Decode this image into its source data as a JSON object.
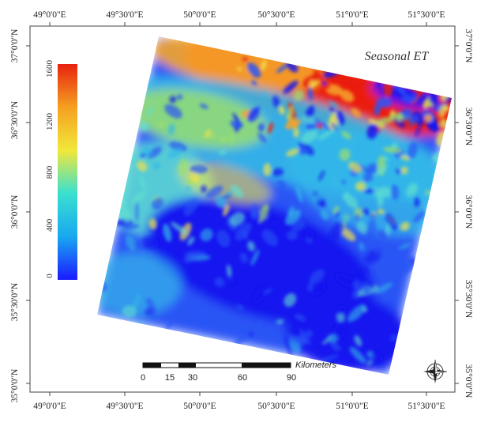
{
  "map": {
    "title": "Seasonal ET",
    "top_lon_labels": [
      "49°0'0\"E",
      "49°30'0\"E",
      "50°0'0\"E",
      "50°30'0\"E",
      "51°0'0\"E",
      "51°30'0\"E"
    ],
    "bottom_lon_labels": [
      "49°0'0\"E",
      "49°30'0\"E",
      "50°0'0\"E",
      "50°30'0\"E",
      "51°0'0\"E",
      "51°30'0\"E"
    ],
    "left_lat_labels": [
      "37°0'0\"N",
      "36°30'0\"N",
      "36°0'0\"N",
      "35°30'0\"N",
      "35°0'0\"N"
    ],
    "right_lat_labels": [
      "37°0'0\"N",
      "36°30'0\"N",
      "36°0'0\"N",
      "35°30'0\"N",
      "35°0'0\"N"
    ]
  },
  "colorbar": {
    "labels": [
      "0",
      "400",
      "800",
      "1200",
      "1600"
    ],
    "min": 0,
    "max": 1600,
    "colors": [
      "#1a1aff",
      "#19a8f0",
      "#39e0d0",
      "#f2e83a",
      "#f5a020",
      "#e8220f"
    ]
  },
  "scalebar": {
    "labels": [
      "0",
      "15",
      "30",
      "60",
      "90"
    ],
    "unit": "Kilometers"
  },
  "compass": {
    "icon": "compass-rose-icon"
  },
  "raster": {
    "colors": {
      "deep_blue": "#1414f0",
      "blue": "#2a55f5",
      "cyan": "#33b8e8",
      "aqua": "#5fe0d0",
      "green": "#9fe068",
      "yellow": "#f0e24a",
      "orange": "#f5a52a",
      "red": "#ea1c10"
    }
  }
}
